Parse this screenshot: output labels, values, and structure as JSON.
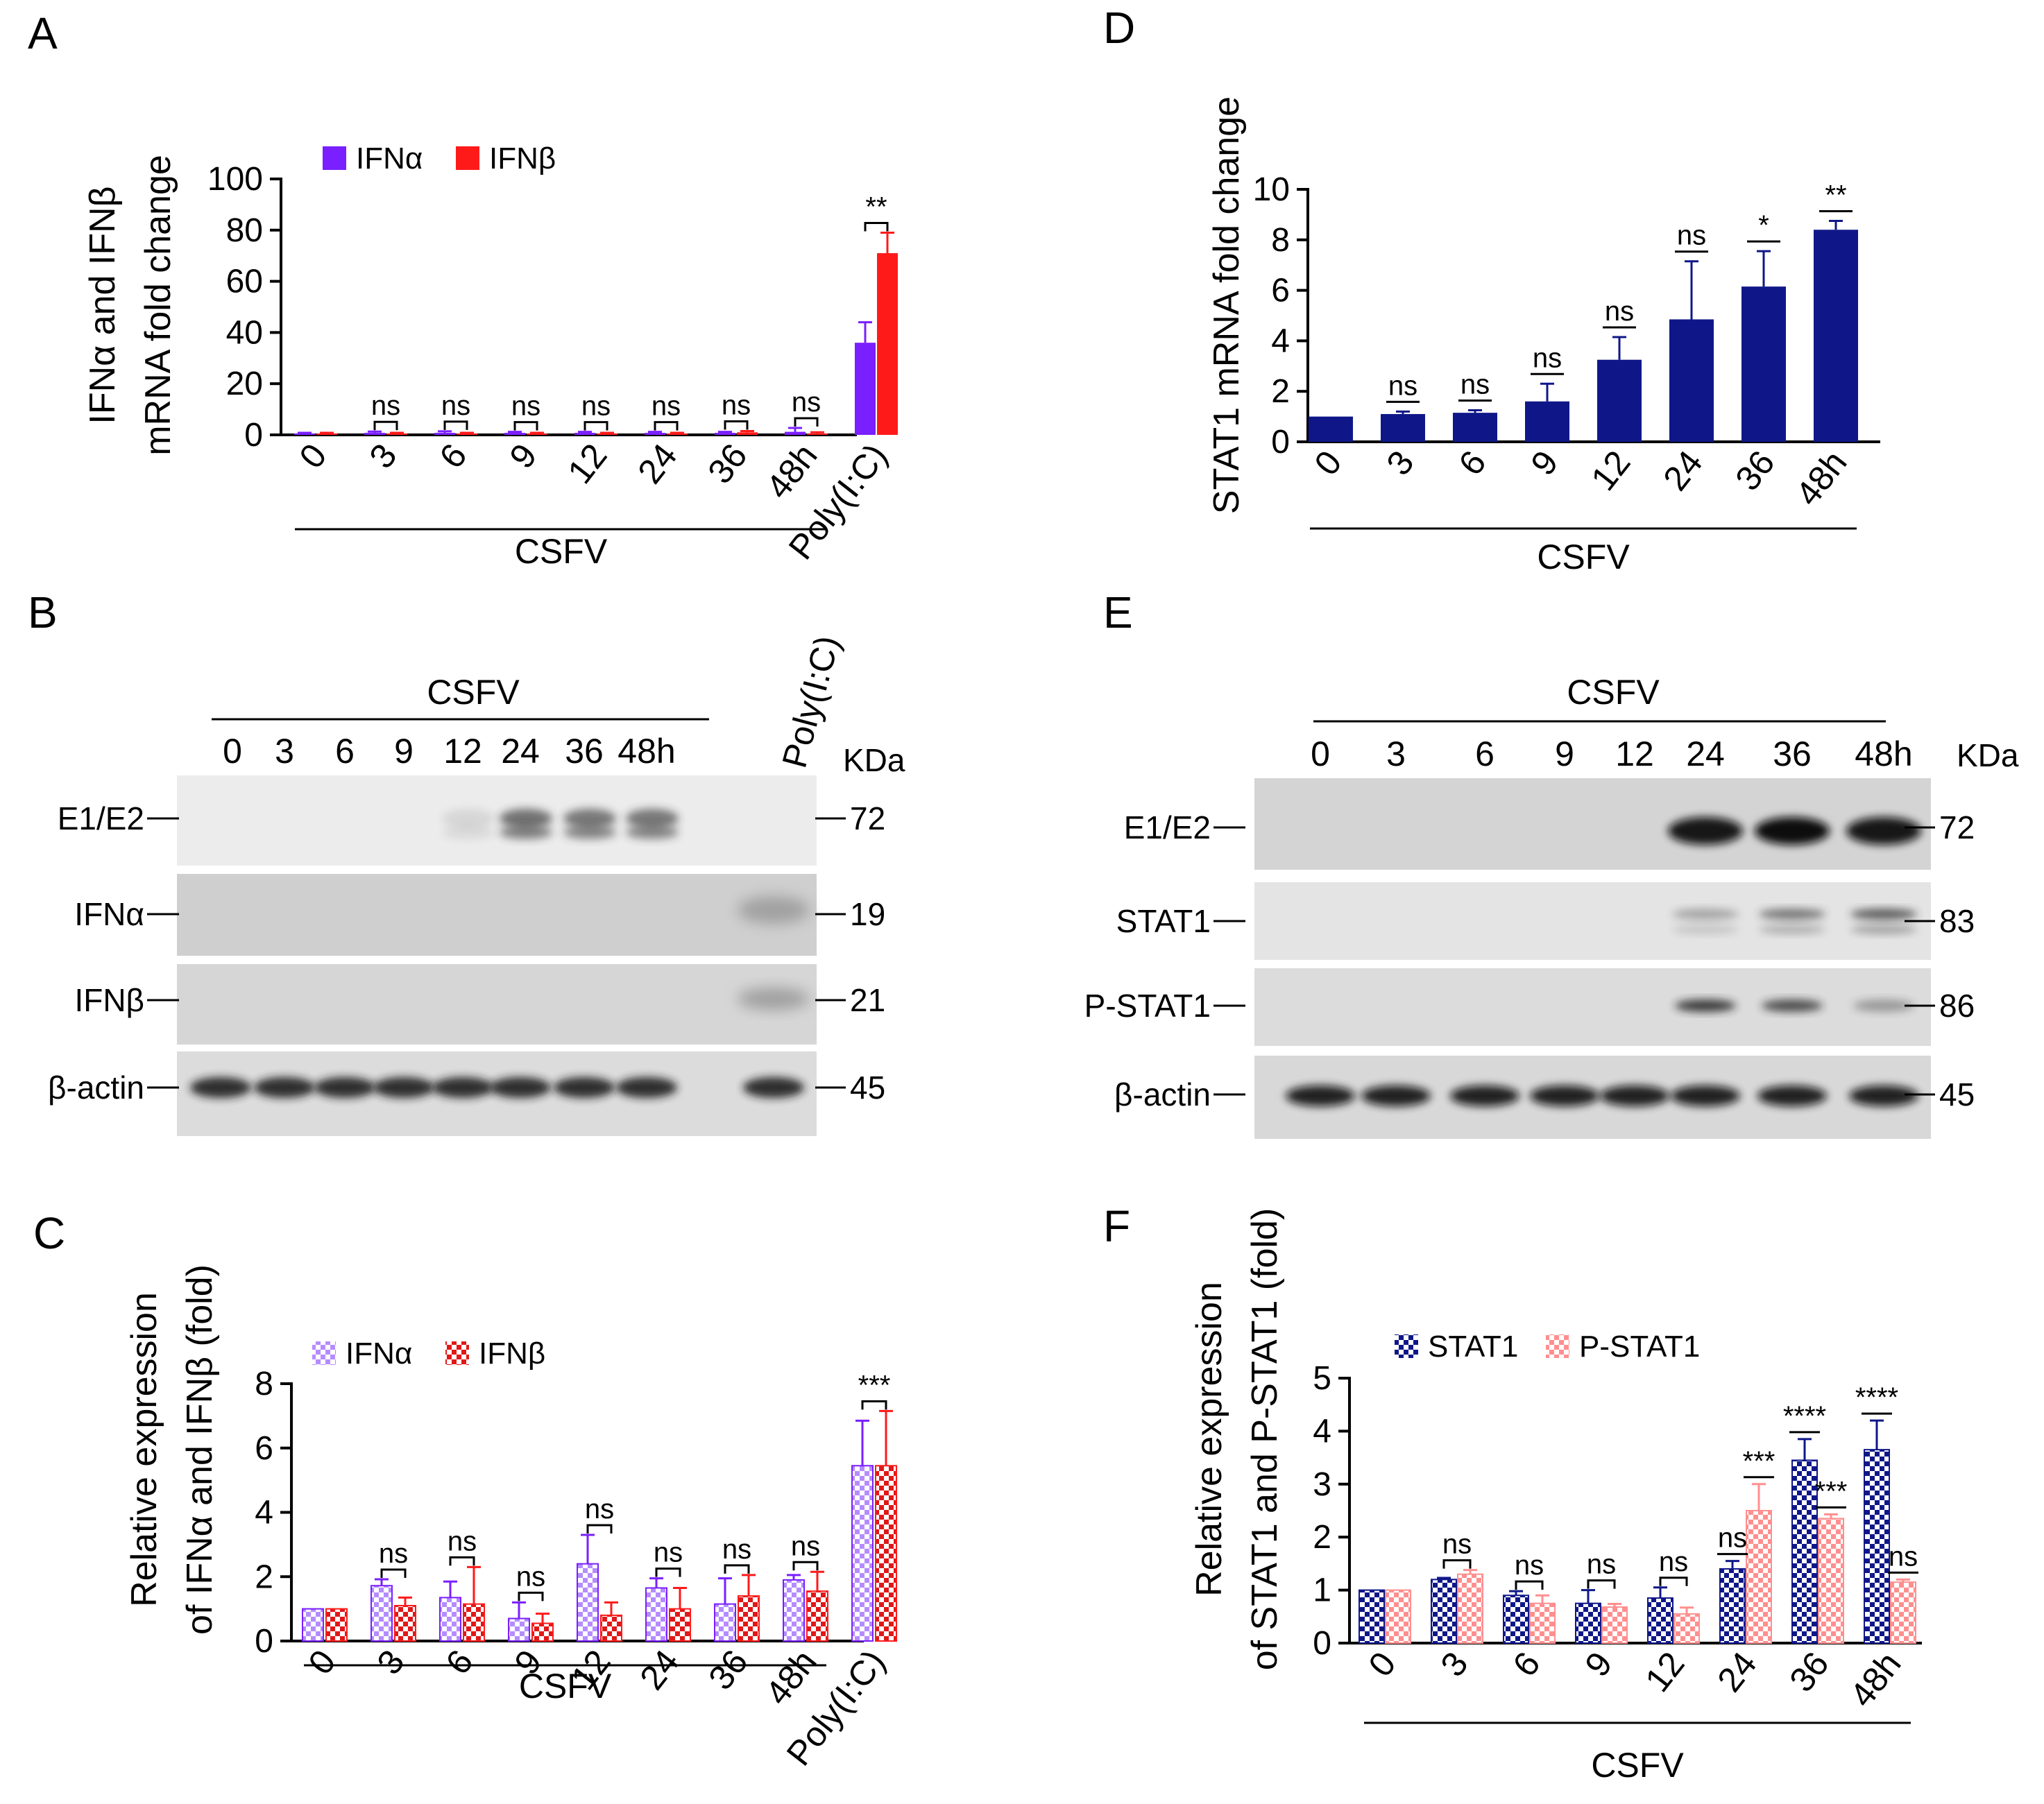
{
  "panels": {
    "A": {
      "letter": "A"
    },
    "B": {
      "letter": "B"
    },
    "C": {
      "letter": "C"
    },
    "D": {
      "letter": "D"
    },
    "E": {
      "letter": "E"
    },
    "F": {
      "letter": "F"
    }
  },
  "colors": {
    "ifna": "#7a1fff",
    "ifnb": "#ff1a1a",
    "stat1": "#0f1788",
    "pstat1": "#ff8f8f",
    "ifna_checker": "#b58cff",
    "ifnb_checker": "#ff6a6a",
    "stat1_checker": "#6f78d8",
    "pstat1_checker": "#ffd0d0"
  },
  "blotB": {
    "group_label": "CSFV",
    "lanes": [
      "0",
      "3",
      "6",
      "9",
      "12",
      "24",
      "36",
      "48h"
    ],
    "extra_lane": "Poly(I:C)",
    "kda_label": "KDa",
    "rows": [
      {
        "name": "E1/E2",
        "kda": "72"
      },
      {
        "name": "IFNα",
        "kda": "19"
      },
      {
        "name": "IFNβ",
        "kda": "21"
      },
      {
        "name": "β-actin",
        "kda": "45"
      }
    ]
  },
  "blotE": {
    "group_label": "CSFV",
    "lanes": [
      "0",
      "3",
      "6",
      "9",
      "12",
      "24",
      "36",
      "48h"
    ],
    "kda_label": "KDa",
    "rows": [
      {
        "name": "E1/E2",
        "kda": "72"
      },
      {
        "name": "STAT1",
        "kda": "83"
      },
      {
        "name": "P-STAT1",
        "kda": "86"
      },
      {
        "name": "β-actin",
        "kda": "45"
      }
    ]
  },
  "chart_data": [
    {
      "id": "A",
      "type": "bar",
      "ylabel": [
        "IFNα and IFNβ",
        "mRNA fold change"
      ],
      "ylim": [
        0,
        100
      ],
      "yticks": [
        0,
        20,
        40,
        60,
        80,
        100
      ],
      "categories": [
        "0",
        "3",
        "6",
        "9",
        "12",
        "24",
        "36",
        "48h",
        "Poly(I:C)"
      ],
      "group_label": "CSFV",
      "series": [
        {
          "name": "IFNα",
          "values": [
            0.5,
            0.8,
            0.8,
            0.8,
            0.8,
            0.8,
            0.8,
            1.2,
            36
          ],
          "errors": [
            0.3,
            0.5,
            0.6,
            0.4,
            0.4,
            0.4,
            0.4,
            1.5,
            8
          ]
        },
        {
          "name": "IFNβ",
          "values": [
            0.5,
            0.5,
            0.5,
            0.5,
            0.5,
            0.5,
            1.0,
            0.5,
            71
          ],
          "errors": [
            0.3,
            0.3,
            0.3,
            0.3,
            0.3,
            0.3,
            0.5,
            0.5,
            8
          ]
        }
      ],
      "annotations": [
        "",
        "ns",
        "ns",
        "ns",
        "ns",
        "ns",
        "ns",
        "ns",
        "**"
      ]
    },
    {
      "id": "C",
      "type": "bar",
      "ylabel": [
        "Relative expression",
        "of IFNα and IFNβ (fold)"
      ],
      "ylim": [
        0,
        8
      ],
      "yticks": [
        0,
        2,
        4,
        6,
        8
      ],
      "categories": [
        "0",
        "3",
        "6",
        "9",
        "12",
        "24",
        "36",
        "48h",
        "Poly(I:C)"
      ],
      "group_label": "CSFV",
      "series": [
        {
          "name": "IFNα",
          "values": [
            1.0,
            1.72,
            1.35,
            0.7,
            2.4,
            1.65,
            1.15,
            1.9,
            5.45
          ],
          "errors": [
            0.0,
            0.2,
            0.5,
            0.5,
            0.9,
            0.3,
            0.8,
            0.15,
            1.4
          ]
        },
        {
          "name": "IFNβ",
          "values": [
            1.0,
            1.1,
            1.15,
            0.55,
            0.8,
            1.0,
            1.4,
            1.55,
            5.45
          ],
          "errors": [
            0.0,
            0.25,
            1.15,
            0.3,
            0.4,
            0.65,
            0.65,
            0.6,
            1.7
          ]
        }
      ],
      "annotations": [
        "",
        "ns",
        "ns",
        "ns",
        "ns",
        "ns",
        "ns",
        "ns",
        "***"
      ]
    },
    {
      "id": "D",
      "type": "bar",
      "ylabel": [
        "STAT1 mRNA fold change"
      ],
      "ylim": [
        0,
        10
      ],
      "yticks": [
        0,
        2,
        4,
        6,
        8,
        10
      ],
      "categories": [
        "0",
        "3",
        "6",
        "9",
        "12",
        "24",
        "36",
        "48h"
      ],
      "group_label": "CSFV",
      "series": [
        {
          "name": "STAT1",
          "values": [
            1.0,
            1.1,
            1.15,
            1.6,
            3.25,
            4.85,
            6.15,
            8.4
          ],
          "errors": [
            0.0,
            0.1,
            0.1,
            0.7,
            0.9,
            2.3,
            1.4,
            0.35
          ]
        }
      ],
      "annotations": [
        "",
        "ns",
        "ns",
        "ns",
        "ns",
        "ns",
        "*",
        "**"
      ]
    },
    {
      "id": "F",
      "type": "bar",
      "ylabel": [
        "Relative expression",
        "of STAT1 and P-STAT1 (fold)"
      ],
      "ylim": [
        0,
        5
      ],
      "yticks": [
        0,
        1,
        2,
        3,
        4,
        5
      ],
      "categories": [
        "0",
        "3",
        "6",
        "9",
        "12",
        "24",
        "36",
        "48h"
      ],
      "group_label": "CSFV",
      "series": [
        {
          "name": "STAT1",
          "values": [
            1.0,
            1.2,
            0.9,
            0.75,
            0.85,
            1.4,
            3.45,
            3.65
          ],
          "errors": [
            0.0,
            0.03,
            0.08,
            0.25,
            0.2,
            0.15,
            0.4,
            0.55
          ]
        },
        {
          "name": "P-STAT1",
          "values": [
            1.0,
            1.3,
            0.75,
            0.68,
            0.55,
            2.5,
            2.35,
            1.15
          ],
          "errors": [
            0.0,
            0.08,
            0.15,
            0.06,
            0.12,
            0.5,
            0.08,
            0.05
          ]
        }
      ],
      "annotations": [
        "",
        "ns",
        "ns",
        "ns",
        "ns",
        "",
        "",
        ""
      ],
      "sig_marks": [
        {
          "category": 5,
          "series": 0,
          "text": "ns"
        },
        {
          "category": 5,
          "series": 1,
          "text": "***"
        },
        {
          "category": 6,
          "series": 0,
          "text": "****"
        },
        {
          "category": 6,
          "series": 1,
          "text": "***"
        },
        {
          "category": 7,
          "series": 0,
          "text": "****"
        },
        {
          "category": 7,
          "series": 1,
          "text": "ns"
        }
      ]
    }
  ]
}
